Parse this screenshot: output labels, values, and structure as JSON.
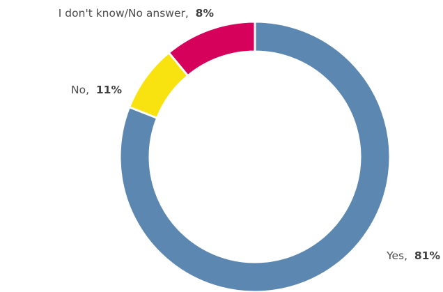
{
  "chart_data": {
    "type": "pie",
    "variant": "donut",
    "title": "",
    "slices": [
      {
        "label": "Yes",
        "value": 81,
        "value_label": "81%",
        "color": "#5b87b1"
      },
      {
        "label": "I don't know/No answer",
        "value": 8,
        "value_label": "8%",
        "color": "#f8e20f"
      },
      {
        "label": "No",
        "value": 11,
        "value_label": "11%",
        "color": "#d6015a"
      }
    ],
    "start": "top",
    "direction": "clockwise",
    "legend": "none",
    "labels": "outside"
  }
}
